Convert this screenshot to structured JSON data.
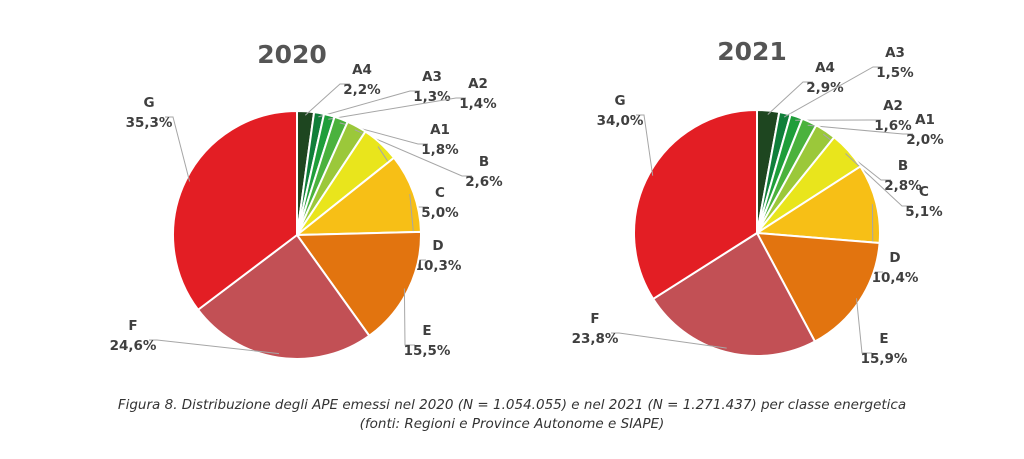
{
  "caption": {
    "line1": "Figura 8. Distribuzione degli APE emessi nel 2020 (N = 1.054.055) e nel 2021 (N = 1.271.437) per classe energetica",
    "line2": "(fonti: Regioni e Province Autonome e SIAPE)"
  },
  "colors": {
    "A4": "#1e4620",
    "A3": "#107f3a",
    "A2": "#1f9e3a",
    "A1": "#4bb23d",
    "B": "#9bc83a",
    "C": "#e9e51c",
    "D": "#f7bf16",
    "E": "#e2740f",
    "F": "#c25055",
    "G": "#e31e24"
  },
  "chart_data": [
    {
      "type": "pie",
      "title": "2020",
      "categories": [
        "A4",
        "A3",
        "A2",
        "A1",
        "B",
        "C",
        "D",
        "E",
        "F",
        "G"
      ],
      "values": [
        2.2,
        1.3,
        1.4,
        1.8,
        2.6,
        5.0,
        10.3,
        15.5,
        24.6,
        35.3
      ],
      "labels": [
        "2,2%",
        "1,3%",
        "1,4%",
        "1,8%",
        "2,6%",
        "5,0%",
        "10,3%",
        "15,5%",
        "24,6%",
        "35,3%"
      ]
    },
    {
      "type": "pie",
      "title": "2021",
      "categories": [
        "A4",
        "A3",
        "A2",
        "A1",
        "B",
        "C",
        "D",
        "E",
        "F",
        "G"
      ],
      "values": [
        2.9,
        1.5,
        1.6,
        2.0,
        2.8,
        5.1,
        10.4,
        15.9,
        23.8,
        34.0
      ],
      "labels": [
        "2,9%",
        "1,5%",
        "1,6%",
        "2,0%",
        "2,8%",
        "5,1%",
        "10,4%",
        "15,9%",
        "23,8%",
        "34,0%"
      ]
    }
  ]
}
